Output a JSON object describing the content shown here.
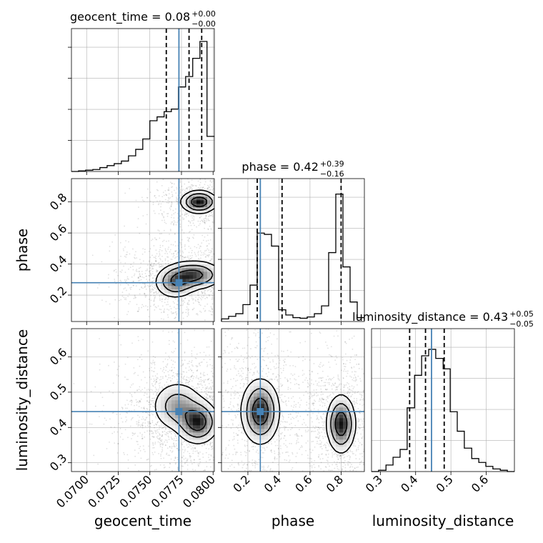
{
  "chart_data": {
    "type": "corner",
    "parameters": [
      "geocent_time",
      "phase",
      "luminosity_distance"
    ],
    "truths": {
      "geocent_time": 0.0773,
      "phase": 0.28,
      "luminosity_distance": 0.445
    },
    "colors": {
      "truth": "#4682b4",
      "hist": "#000000",
      "quantile": "#000000",
      "grid": "#b0b0b0"
    },
    "titles": {
      "geocent_time": {
        "label": "geocent_time",
        "value": "0.08",
        "plus": "+0.00",
        "minus": "−0.00"
      },
      "phase": {
        "label": "phase",
        "value": "0.42",
        "plus": "+0.39",
        "minus": "−0.16"
      },
      "luminosity_distance": {
        "label": "luminosity_distance",
        "value": "0.43",
        "plus": "+0.05",
        "minus": "−0.05"
      }
    },
    "axis_labels": {
      "geocent_time": "geocent_time",
      "phase": "phase",
      "luminosity_distance": "luminosity_distance"
    },
    "ranges": {
      "geocent_time": [
        0.0688,
        0.0801
      ],
      "phase": [
        0.03,
        0.95
      ],
      "luminosity_distance": [
        0.275,
        0.68
      ]
    },
    "ticks": {
      "geocent_time": {
        "values": [
          0.07,
          0.0725,
          0.075,
          0.0775,
          0.08
        ],
        "labels": [
          "0.0700",
          "0.0725",
          "0.0750",
          "0.0775",
          "0.0800"
        ]
      },
      "phase": {
        "values": [
          0.2,
          0.4,
          0.6,
          0.8
        ],
        "labels": [
          "0.2",
          "0.4",
          "0.6",
          "0.8"
        ]
      },
      "luminosity_distance": {
        "values": [
          0.3,
          0.4,
          0.5,
          0.6
        ],
        "labels": [
          "0.3",
          "0.4",
          "0.5",
          "0.6"
        ]
      }
    },
    "quantiles": {
      "geocent_time": [
        0.0763,
        0.0781,
        0.0791
      ],
      "phase": [
        0.26,
        0.42,
        0.8
      ],
      "luminosity_distance": [
        0.383,
        0.428,
        0.481
      ]
    },
    "hist_geocent_time": {
      "edges": [
        0.0688,
        0.06936,
        0.06992,
        0.07049,
        0.07105,
        0.07162,
        0.07218,
        0.07275,
        0.07331,
        0.07388,
        0.07444,
        0.075,
        0.07557,
        0.07613,
        0.0767,
        0.07726,
        0.07783,
        0.07839,
        0.07896,
        0.07952,
        0.0801
      ],
      "counts": [
        0,
        0.005,
        0.01,
        0.015,
        0.03,
        0.045,
        0.06,
        0.08,
        0.12,
        0.17,
        0.25,
        0.39,
        0.42,
        0.46,
        0.48,
        0.65,
        0.73,
        0.87,
        1.0,
        0.27
      ]
    },
    "hist_phase": {
      "edges": [
        0.03,
        0.076,
        0.122,
        0.168,
        0.214,
        0.26,
        0.306,
        0.352,
        0.398,
        0.444,
        0.49,
        0.536,
        0.582,
        0.628,
        0.674,
        0.72,
        0.766,
        0.812,
        0.858,
        0.904,
        0.95
      ],
      "counts": [
        0.02,
        0.04,
        0.06,
        0.13,
        0.28,
        0.68,
        0.67,
        0.58,
        0.09,
        0.05,
        0.03,
        0.025,
        0.035,
        0.06,
        0.12,
        0.53,
        0.98,
        0.42,
        0.15,
        0.03
      ]
    },
    "hist_luminosity_distance": {
      "edges": [
        0.275,
        0.295,
        0.316,
        0.336,
        0.356,
        0.376,
        0.397,
        0.417,
        0.437,
        0.457,
        0.478,
        0.498,
        0.518,
        0.538,
        0.559,
        0.579,
        0.599,
        0.619,
        0.64,
        0.66,
        0.68
      ],
      "counts": [
        0,
        0.01,
        0.05,
        0.11,
        0.17,
        0.49,
        0.74,
        0.89,
        0.94,
        0.87,
        0.79,
        0.46,
        0.31,
        0.18,
        0.1,
        0.07,
        0.04,
        0.02,
        0.01,
        0
      ]
    },
    "density_2d": {
      "phase_vs_geocent_time": {
        "modes": [
          {
            "x": 0.0789,
            "y": 0.8,
            "sx": 0.0007,
            "sy": 0.035,
            "w": 1.0
          },
          {
            "x": 0.0785,
            "y": 0.33,
            "sx": 0.0011,
            "sy": 0.045,
            "w": 0.8
          },
          {
            "x": 0.077,
            "y": 0.28,
            "sx": 0.0008,
            "sy": 0.05,
            "w": 0.6
          }
        ],
        "contour_levels": [
          0.12,
          0.35,
          0.7
        ]
      },
      "luminosity_distance_vs_geocent_time": {
        "modes": [
          {
            "x": 0.0788,
            "y": 0.415,
            "sx": 0.0008,
            "sy": 0.03,
            "w": 1.0
          },
          {
            "x": 0.0772,
            "y": 0.46,
            "sx": 0.001,
            "sy": 0.035,
            "w": 0.6
          }
        ],
        "contour_levels": [
          0.12,
          0.35,
          0.7
        ]
      },
      "luminosity_distance_vs_phase": {
        "modes": [
          {
            "x": 0.28,
            "y": 0.445,
            "sx": 0.06,
            "sy": 0.045,
            "w": 1.0
          },
          {
            "x": 0.8,
            "y": 0.41,
            "sx": 0.045,
            "sy": 0.04,
            "w": 1.0
          }
        ],
        "contour_levels": [
          0.12,
          0.35,
          0.7
        ]
      }
    }
  }
}
